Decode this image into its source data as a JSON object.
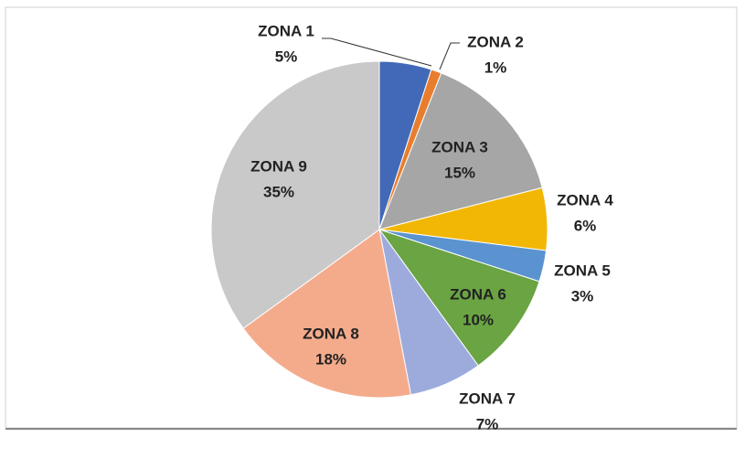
{
  "chart_data": {
    "type": "pie",
    "categories": [
      "ZONA 1",
      "ZONA 2",
      "ZONA 3",
      "ZONA 4",
      "ZONA 5",
      "ZONA 6",
      "ZONA 7",
      "ZONA 8",
      "ZONA 9"
    ],
    "values": [
      5,
      1,
      15,
      6,
      3,
      10,
      7,
      18,
      35
    ],
    "value_labels": [
      "5%",
      "1%",
      "15%",
      "6%",
      "3%",
      "10%",
      "7%",
      "18%",
      "35%"
    ],
    "colors": [
      "#4169b8",
      "#e87d2e",
      "#a6a6a6",
      "#f2b705",
      "#5b93d0",
      "#6aa443",
      "#9dabdc",
      "#f4ab8c",
      "#c9c9c9"
    ]
  }
}
